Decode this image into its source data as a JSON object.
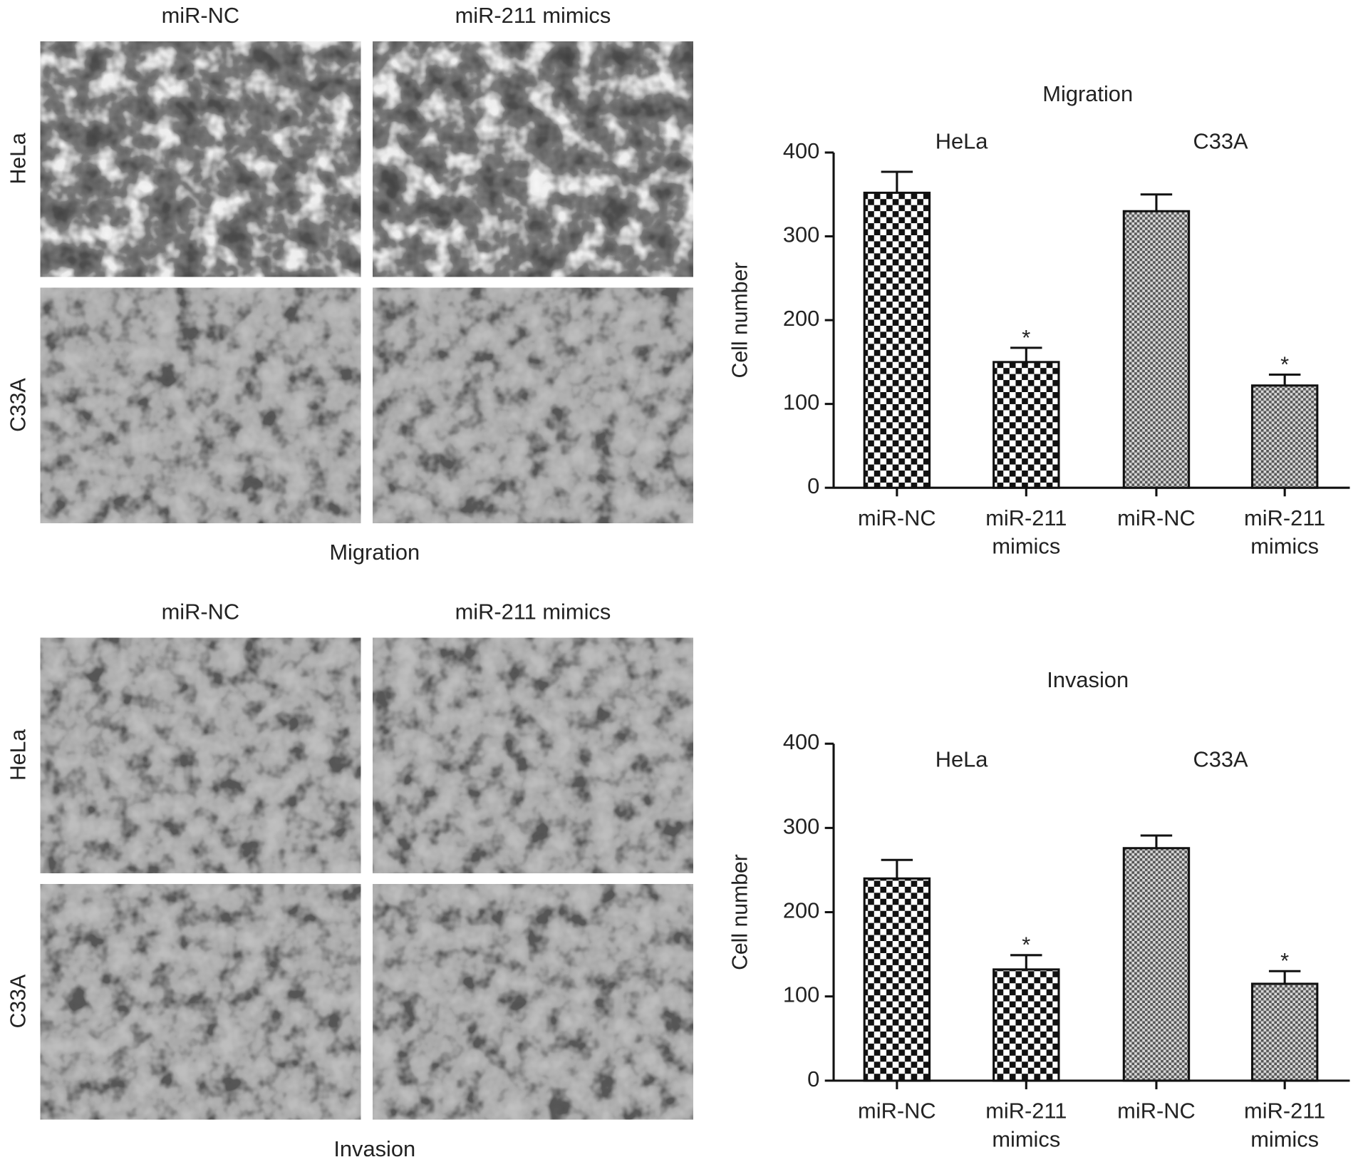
{
  "micrographs": [
    {
      "columns": [
        "miR-NC",
        "miR-211 mimics"
      ],
      "rows": [
        "HeLa",
        "C33A"
      ],
      "caption": "Migration"
    },
    {
      "columns": [
        "miR-NC",
        "miR-211 mimics"
      ],
      "rows": [
        "HeLa",
        "C33A"
      ],
      "caption": "Invasion"
    }
  ],
  "chart_data": [
    {
      "type": "bar",
      "title": "Migration",
      "y_label": "Cell number",
      "categories": [
        "miR-NC",
        "miR-211 mimics"
      ],
      "series": [
        {
          "name": "HeLa",
          "pattern": "coarse",
          "values": [
            352,
            150
          ],
          "errors": [
            25,
            17
          ],
          "significance": [
            null,
            "*"
          ]
        },
        {
          "name": "C33A",
          "pattern": "fine",
          "values": [
            330,
            122
          ],
          "errors": [
            20,
            13
          ],
          "significance": [
            null,
            "*"
          ]
        }
      ],
      "ylim": [
        0,
        400
      ],
      "yticks": [
        0,
        100,
        200,
        300,
        400
      ]
    },
    {
      "type": "bar",
      "title": "Invasion",
      "y_label": "Cell number",
      "categories": [
        "miR-NC",
        "miR-211 mimics"
      ],
      "series": [
        {
          "name": "HeLa",
          "pattern": "coarse",
          "values": [
            240,
            132
          ],
          "errors": [
            22,
            17
          ],
          "significance": [
            null,
            "*"
          ]
        },
        {
          "name": "C33A",
          "pattern": "fine",
          "values": [
            276,
            115
          ],
          "errors": [
            15,
            15
          ],
          "significance": [
            null,
            "*"
          ]
        }
      ],
      "ylim": [
        0,
        400
      ],
      "yticks": [
        0,
        100,
        200,
        300,
        400
      ]
    }
  ]
}
